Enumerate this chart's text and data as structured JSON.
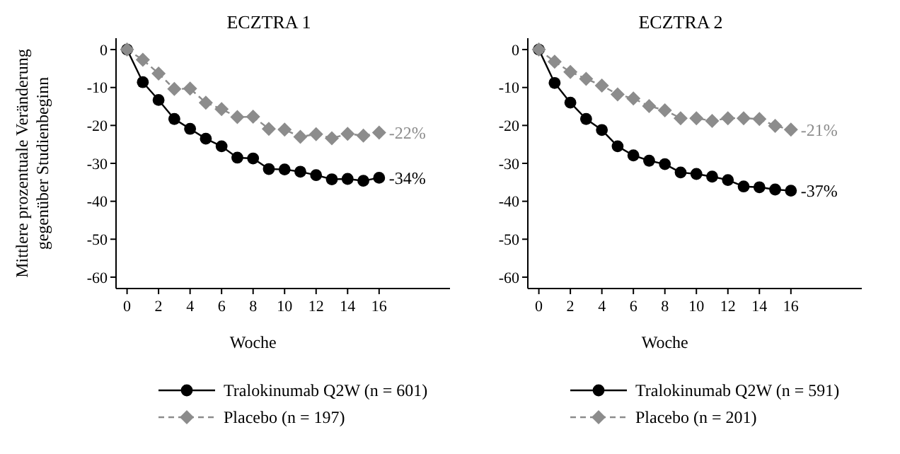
{
  "chart_data": [
    {
      "type": "line",
      "title": "ECZTRA 1",
      "xlabel": "Woche",
      "ylabel": "Mittlere prozentuale Veränderung gegenüber Studienbeginn",
      "x": [
        0,
        1,
        2,
        3,
        4,
        5,
        6,
        7,
        8,
        9,
        10,
        11,
        12,
        13,
        14,
        15,
        16
      ],
      "xlim": [
        -0.7,
        20.5
      ],
      "xticks": [
        0,
        2,
        4,
        6,
        8,
        10,
        12,
        14,
        16
      ],
      "ylim": [
        -63,
        3
      ],
      "yticks": [
        0,
        -10,
        -20,
        -30,
        -40,
        -50,
        -60
      ],
      "grid": false,
      "legend": "bottom",
      "series": [
        {
          "name": "Tralokinumab Q2W (n = 601)",
          "color": "#000000",
          "marker": "circle",
          "line_style": "solid",
          "values": [
            0,
            -8.6,
            -13.3,
            -18.3,
            -20.9,
            -23.5,
            -25.5,
            -28.5,
            -28.7,
            -31.5,
            -31.6,
            -32.2,
            -33.1,
            -34.2,
            -34.1,
            -34.6,
            -33.8
          ]
        },
        {
          "name": "Placebo (n = 197)",
          "color": "#8c8c8c",
          "marker": "diamond",
          "line_style": "dashed",
          "values": [
            0,
            -2.7,
            -6.3,
            -10.4,
            -10.3,
            -14,
            -15.7,
            -17.8,
            -17.7,
            -20.9,
            -21.1,
            -23,
            -22.3,
            -23.4,
            -22.2,
            -22.7,
            -21.9
          ]
        }
      ],
      "annotations": [
        "-34%",
        "-22%"
      ]
    },
    {
      "type": "line",
      "title": "ECZTRA 2",
      "xlabel": "Woche",
      "x": [
        0,
        1,
        2,
        3,
        4,
        5,
        6,
        7,
        8,
        9,
        10,
        11,
        12,
        13,
        14,
        15,
        16
      ],
      "xlim": [
        -0.7,
        20.5
      ],
      "xticks": [
        0,
        2,
        4,
        6,
        8,
        10,
        12,
        14,
        16
      ],
      "ylim": [
        -63,
        3
      ],
      "yticks": [
        0,
        -10,
        -20,
        -30,
        -40,
        -50,
        -60
      ],
      "grid": false,
      "legend": "bottom",
      "series": [
        {
          "name": "Tralokinumab Q2W (n = 591)",
          "color": "#000000",
          "marker": "circle",
          "line_style": "solid",
          "values": [
            0,
            -8.8,
            -14,
            -18.3,
            -21.2,
            -25.5,
            -27.9,
            -29.3,
            -30.2,
            -32.4,
            -32.8,
            -33.5,
            -34.4,
            -36.1,
            -36.3,
            -36.9,
            -37.2
          ]
        },
        {
          "name": "Placebo (n = 201)",
          "color": "#8c8c8c",
          "marker": "diamond",
          "line_style": "dashed",
          "values": [
            0,
            -3.2,
            -5.9,
            -7.7,
            -9.5,
            -11.8,
            -12.9,
            -14.9,
            -16,
            -18.1,
            -18.1,
            -18.8,
            -18.1,
            -18.1,
            -18.3,
            -20.1,
            -21.1
          ]
        }
      ],
      "annotations": [
        "-37%",
        "-21%"
      ]
    }
  ]
}
